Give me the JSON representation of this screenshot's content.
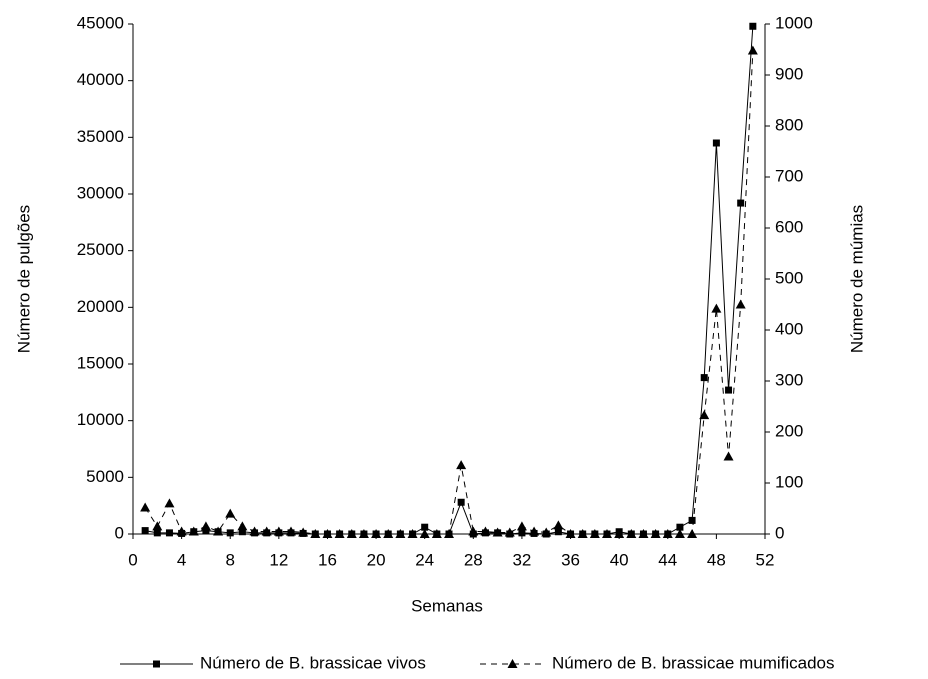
{
  "chart_data": {
    "type": "line",
    "x_label": "Semanas",
    "y_label": "Número de pulgões",
    "y2_label": "Número de múmias",
    "x": [
      1,
      2,
      3,
      4,
      5,
      6,
      7,
      8,
      9,
      10,
      11,
      12,
      13,
      14,
      15,
      16,
      17,
      18,
      19,
      20,
      21,
      22,
      23,
      24,
      25,
      26,
      27,
      28,
      29,
      30,
      31,
      32,
      33,
      34,
      35,
      36,
      37,
      38,
      39,
      40,
      41,
      42,
      43,
      44,
      45,
      46,
      47,
      48,
      49,
      50,
      51
    ],
    "series": [
      {
        "name": "Número de B. brassicae vivos",
        "color": "#000000",
        "style": "solid",
        "marker": "square",
        "values": [
          300,
          100,
          100,
          50,
          200,
          300,
          200,
          100,
          200,
          100,
          100,
          100,
          100,
          50,
          0,
          0,
          0,
          0,
          0,
          0,
          0,
          0,
          0,
          600,
          0,
          0,
          2800,
          0,
          100,
          100,
          0,
          100,
          50,
          0,
          200,
          0,
          0,
          0,
          0,
          200,
          0,
          0,
          0,
          0,
          600,
          1200,
          13800,
          34500,
          12700,
          29200,
          44800
        ]
      },
      {
        "name": "Número de B. brassicae mumificados",
        "color": "#000000",
        "style": "dashed",
        "marker": "triangle",
        "axis": "y2",
        "values": [
          52,
          15,
          60,
          5,
          5,
          15,
          5,
          40,
          15,
          5,
          5,
          5,
          5,
          3,
          0,
          0,
          0,
          0,
          0,
          0,
          0,
          0,
          0,
          0,
          0,
          0,
          135,
          5,
          5,
          3,
          3,
          15,
          5,
          3,
          17,
          0,
          0,
          0,
          0,
          0,
          0,
          0,
          0,
          0,
          0,
          0,
          233,
          442,
          152,
          450,
          948
        ]
      }
    ],
    "xlim": [
      0,
      52
    ],
    "xticks": [
      0,
      4,
      8,
      12,
      16,
      20,
      24,
      28,
      32,
      36,
      40,
      44,
      48,
      52
    ],
    "ylim": [
      0,
      45000
    ],
    "yticks": [
      0,
      5000,
      10000,
      15000,
      20000,
      25000,
      30000,
      35000,
      40000,
      45000
    ],
    "y2lim": [
      0,
      1000
    ],
    "y2ticks": [
      0,
      100,
      200,
      300,
      400,
      500,
      600,
      700,
      800,
      900,
      1000
    ],
    "grid": false,
    "legend": "bottom"
  }
}
